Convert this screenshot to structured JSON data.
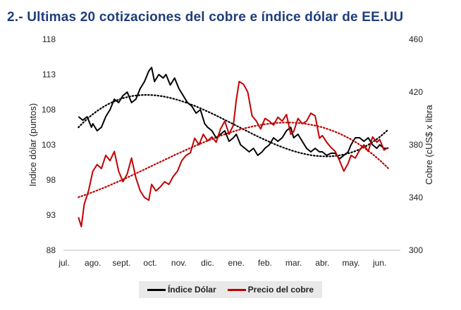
{
  "title": "2.- Ultimas 20 cotizaciones del cobre e índice dólar de EE.UU",
  "chart_data": {
    "type": "line",
    "title": "",
    "x_categories": [
      "jul.",
      "ago.",
      "sept.",
      "oct.",
      "nov.",
      "dic.",
      "ene.",
      "feb.",
      "mar.",
      "abr.",
      "may.",
      "jun."
    ],
    "y_left_label": "Indice dólar (puntos)",
    "y_left_ticks": [
      "118",
      "113",
      "108",
      "103",
      "98",
      "93",
      "88"
    ],
    "y_left_range": [
      88,
      118
    ],
    "y_right_label": "Cobre (cUS$ x libra",
    "y_right_ticks": [
      "460",
      "420",
      "380",
      "340",
      "300"
    ],
    "y_right_range": [
      300,
      460
    ],
    "grid": false,
    "legend_position": "bottom",
    "series": [
      {
        "name": "Índice Dólar",
        "axis": "left",
        "color": "#000000",
        "x": [
          0.5,
          0.65,
          0.8,
          0.95,
          1.0,
          1.15,
          1.3,
          1.45,
          1.6,
          1.75,
          1.9,
          2.05,
          2.2,
          2.35,
          2.5,
          2.65,
          2.8,
          2.95,
          3.05,
          3.15,
          3.3,
          3.45,
          3.55,
          3.7,
          3.85,
          4.0,
          4.15,
          4.3,
          4.45,
          4.6,
          4.75,
          4.9,
          5.0,
          5.15,
          5.3,
          5.45,
          5.6,
          5.75,
          5.9,
          6.0,
          6.15,
          6.3,
          6.45,
          6.6,
          6.75,
          6.9,
          7.0,
          7.15,
          7.3,
          7.45,
          7.6,
          7.75,
          7.9,
          8.0,
          8.15,
          8.3,
          8.45,
          8.6,
          8.75,
          8.9,
          9.0,
          9.15,
          9.3,
          9.45,
          9.6,
          9.75,
          9.9,
          10.0,
          10.15,
          10.3,
          10.45,
          10.6,
          10.75,
          10.9,
          11.0,
          11.15,
          11.3
        ],
        "values": [
          107,
          106.5,
          107,
          105.5,
          106,
          105,
          105.5,
          107,
          108,
          109.5,
          109,
          110,
          110.5,
          109,
          109.5,
          111,
          112,
          113.5,
          114,
          112,
          113,
          112.5,
          113,
          111.5,
          112.5,
          111,
          110,
          109,
          108.5,
          107.5,
          108,
          106,
          105.5,
          105,
          104,
          104.5,
          105,
          103.5,
          104,
          104.5,
          103,
          102.5,
          102,
          102.5,
          101.5,
          102,
          102.5,
          103,
          104,
          103.5,
          104,
          105,
          105.5,
          104,
          104.5,
          103.5,
          102.5,
          102,
          102.5,
          102,
          102,
          101.5,
          101.8,
          101.8,
          101,
          101.5,
          102,
          103,
          104,
          104,
          103.5,
          104,
          103,
          102.5,
          103,
          102.5,
          102.5
        ]
      },
      {
        "name": "Precio del cobre",
        "axis": "right",
        "color": "#c00000",
        "x": [
          0.5,
          0.6,
          0.7,
          0.85,
          1.0,
          1.15,
          1.3,
          1.45,
          1.6,
          1.75,
          1.9,
          2.05,
          2.2,
          2.35,
          2.5,
          2.65,
          2.8,
          2.95,
          3.05,
          3.2,
          3.35,
          3.5,
          3.65,
          3.8,
          3.95,
          4.1,
          4.25,
          4.4,
          4.55,
          4.7,
          4.85,
          5.0,
          5.15,
          5.3,
          5.45,
          5.6,
          5.75,
          5.9,
          6.0,
          6.1,
          6.25,
          6.4,
          6.55,
          6.7,
          6.85,
          7.0,
          7.15,
          7.3,
          7.45,
          7.6,
          7.75,
          7.9,
          8.0,
          8.15,
          8.3,
          8.45,
          8.6,
          8.75,
          8.9,
          9.0,
          9.15,
          9.3,
          9.45,
          9.6,
          9.75,
          9.9,
          10.0,
          10.15,
          10.3,
          10.45,
          10.6,
          10.75,
          10.9,
          11.0,
          11.15,
          11.3
        ],
        "values": [
          325,
          318,
          335,
          345,
          360,
          365,
          362,
          372,
          368,
          375,
          360,
          352,
          358,
          370,
          355,
          345,
          340,
          338,
          350,
          345,
          348,
          352,
          350,
          356,
          360,
          368,
          372,
          374,
          385,
          380,
          388,
          383,
          386,
          382,
          392,
          398,
          388,
          395,
          414,
          428,
          426,
          420,
          402,
          398,
          392,
          400,
          398,
          395,
          401,
          398,
          403,
          388,
          390,
          400,
          396,
          398,
          404,
          402,
          385,
          387,
          382,
          378,
          375,
          368,
          360,
          366,
          372,
          370,
          376,
          380,
          375,
          386,
          382,
          384,
          376,
          378
        ]
      }
    ],
    "trendlines": [
      {
        "name": "Índice Dólar",
        "style": "dotted",
        "color": "#000000"
      },
      {
        "name": "Precio del cobre",
        "style": "dotted",
        "color": "#c00000"
      }
    ]
  },
  "legend": [
    {
      "label": "Índice Dólar",
      "color": "#000000"
    },
    {
      "label": "Precio del cobre",
      "color": "#c00000"
    }
  ]
}
